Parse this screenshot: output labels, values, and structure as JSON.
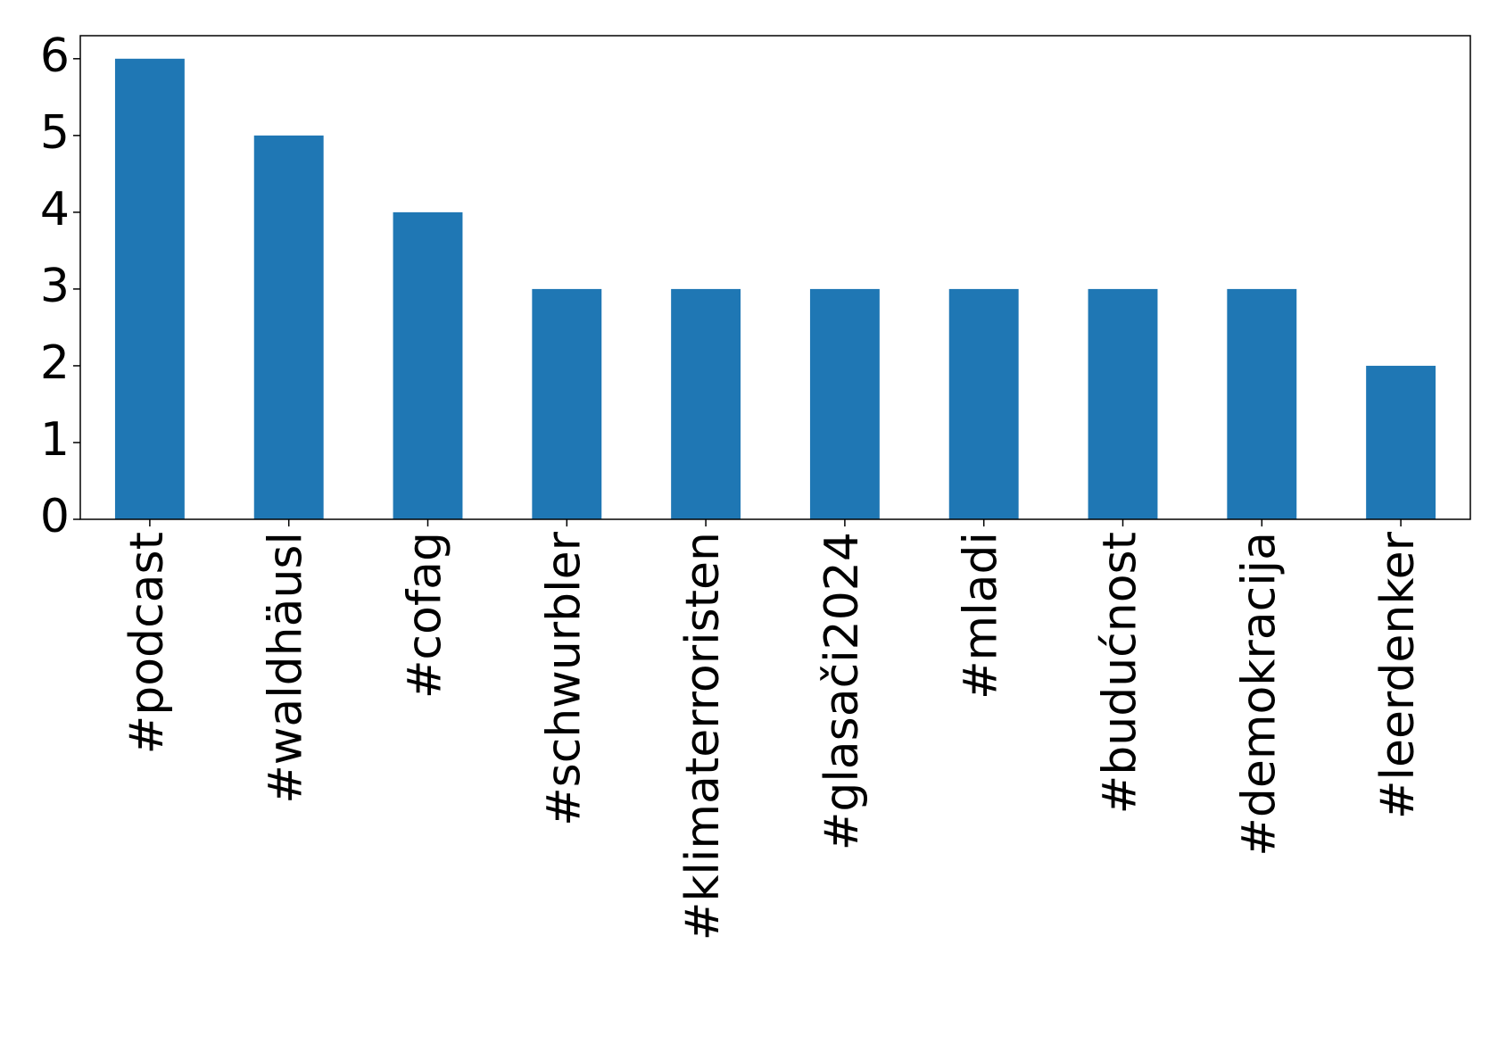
{
  "chart_data": {
    "type": "bar",
    "categories": [
      "#podcast",
      "#waldhäusl",
      "#cofag",
      "#schwurbler",
      "#klimaterroristen",
      "#glasači2024",
      "#mladi",
      "#budućnost",
      "#demokracija",
      "#leerdenker"
    ],
    "values": [
      6,
      5,
      4,
      3,
      3,
      3,
      3,
      3,
      3,
      2
    ],
    "color": "#1f77b4",
    "ylim": [
      0,
      6.3
    ],
    "yticks": [
      0,
      1,
      2,
      3,
      4,
      5,
      6
    ],
    "grid": false
  }
}
